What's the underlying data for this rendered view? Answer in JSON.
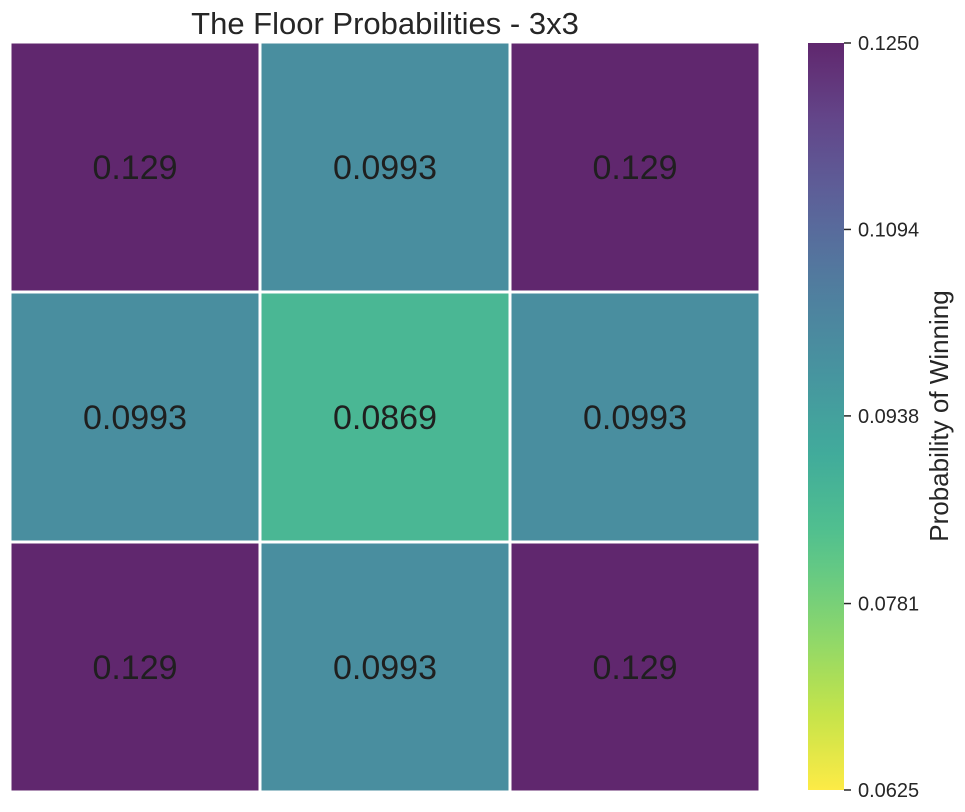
{
  "chart_data": {
    "type": "heatmap",
    "title": "The Floor Probabilities - 3x3",
    "rows": 3,
    "cols": 3,
    "values": [
      [
        0.129,
        0.0993,
        0.129
      ],
      [
        0.0993,
        0.0869,
        0.0993
      ],
      [
        0.129,
        0.0993,
        0.129
      ]
    ],
    "cell_labels": [
      [
        "0.129",
        "0.0993",
        "0.129"
      ],
      [
        "0.0993",
        "0.0869",
        "0.0993"
      ],
      [
        "0.129",
        "0.0993",
        "0.129"
      ]
    ],
    "colorbar": {
      "label": "Probability of Winning",
      "range": [
        0.0625,
        0.125
      ],
      "ticks": [
        0.0625,
        0.0781,
        0.0938,
        0.1094,
        0.125
      ],
      "tick_labels": [
        "0.0625",
        "0.0781",
        "0.0938",
        "0.1094",
        "0.1250"
      ],
      "colormap": "viridis_r",
      "alpha": 0.85
    },
    "grid": false,
    "cell_separator_color": "#ffffff"
  }
}
